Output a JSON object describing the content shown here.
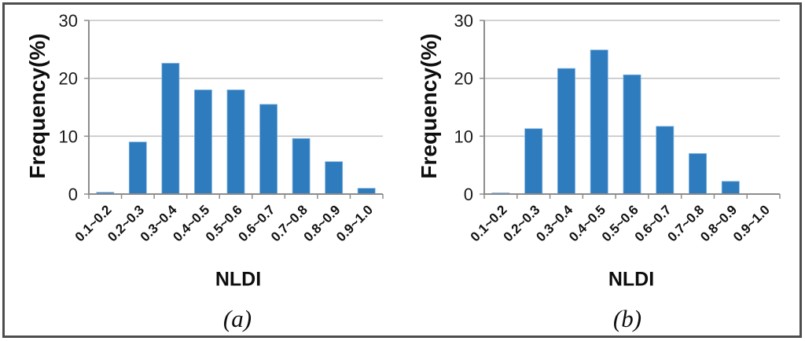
{
  "figure": {
    "colors": {
      "bar_fill": "#2e7bbe",
      "bar_edge": "#7eb3df",
      "gridline": "#c3c3c3",
      "axis": "#8c8c8c",
      "text": "#0d0d0d",
      "frame_border": "#4d4d4d",
      "background": "#ffffff"
    }
  },
  "chart_data": [
    {
      "type": "bar",
      "panel": "a",
      "caption": "(a)",
      "xlabel": "NLDI",
      "ylabel": "Frequency(%)",
      "categories": [
        "0.1~0.2",
        "0.2~0.3",
        "0.3~0.4",
        "0.4~0.5",
        "0.5~0.6",
        "0.6~0.7",
        "0.7~0.8",
        "0.8~0.9",
        "0.9~1.0"
      ],
      "values": [
        0.3,
        9.0,
        22.6,
        18.0,
        18.0,
        15.5,
        9.6,
        5.6,
        1.0
      ],
      "yticks": [
        0,
        10,
        20,
        30
      ],
      "ylim": [
        0,
        30
      ],
      "grid": true,
      "legend": "none"
    },
    {
      "type": "bar",
      "panel": "b",
      "caption": "(b)",
      "xlabel": "NLDI",
      "ylabel": "Frequency(%)",
      "categories": [
        "0.1~0.2",
        "0.2~0.3",
        "0.3~0.4",
        "0.4~0.5",
        "0.5~0.6",
        "0.6~0.7",
        "0.7~0.8",
        "0.8~0.9",
        "0.9~1.0"
      ],
      "values": [
        0.2,
        11.3,
        21.7,
        24.9,
        20.6,
        11.7,
        7.0,
        2.2,
        0.0
      ],
      "yticks": [
        0,
        10,
        20,
        30
      ],
      "ylim": [
        0,
        30
      ],
      "grid": true,
      "legend": "none"
    }
  ]
}
